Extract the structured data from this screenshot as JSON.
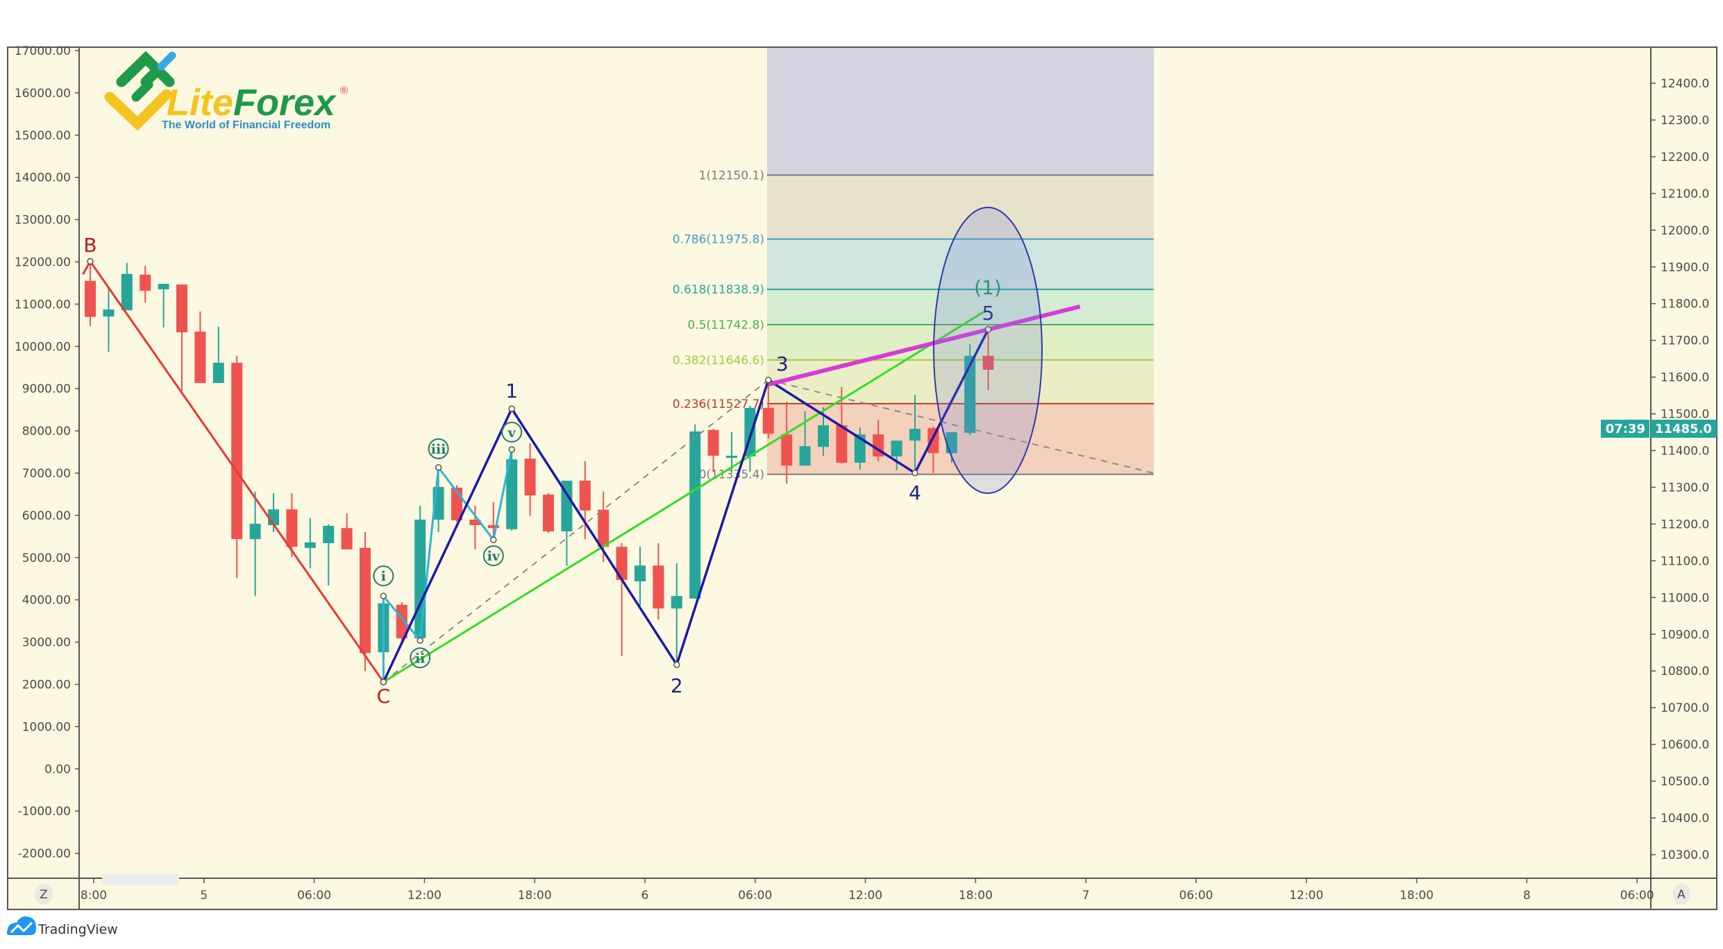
{
  "logo": {
    "brand_lite": "Lite",
    "brand_forex": "Forex",
    "registered": "®",
    "tagline": "The World of Financial Freedom"
  },
  "footer": {
    "brand": "TradingView"
  },
  "axis_buttons": {
    "left": "Z",
    "right": "A"
  },
  "price_tag": {
    "value": "11485.0",
    "countdown": "07:39",
    "color": "#26a69a"
  },
  "chart_data": {
    "type": "candlestick",
    "title": "",
    "colors": {
      "up": "#26a69a",
      "down": "#ef5350",
      "background": "#fdf8e1"
    },
    "left_axis": {
      "labels": [
        "17000.00",
        "16000.00",
        "15000.00",
        "14000.00",
        "13000.00",
        "12000.00",
        "11000.00",
        "10000.00",
        "9000.00",
        "8000.00",
        "7000.00",
        "6000.00",
        "5000.00",
        "4000.00",
        "3000.00",
        "2000.00",
        "1000.00",
        "0.00",
        "-1000.00",
        "-2000.00"
      ],
      "ylim": [
        -2000,
        17000
      ]
    },
    "right_axis": {
      "labels": [
        "12400.0",
        "12300.0",
        "12200.0",
        "12100.0",
        "12000.0",
        "11900.0",
        "11800.0",
        "11700.0",
        "11600.0",
        "11500.0",
        "11400.0",
        "11300.0",
        "11200.0",
        "11100.0",
        "11000.0",
        "10900.0",
        "10800.0",
        "10700.0",
        "10600.0",
        "10500.0",
        "10400.0",
        "10300.0"
      ],
      "ylim": [
        10300,
        12400
      ]
    },
    "time_axis": {
      "labels": [
        "8:00",
        "5",
        "06:00",
        "12:00",
        "18:00",
        "6",
        "06:00",
        "12:00",
        "18:00",
        "7",
        "06:00",
        "12:00",
        "18:00",
        "8",
        "06:00"
      ],
      "bars_per_label": 6
    },
    "candles": [
      [
        11862,
        11913,
        11739,
        11764
      ],
      [
        11765,
        11841,
        11669,
        11784
      ],
      [
        11782,
        11911,
        11782,
        11881
      ],
      [
        11879,
        11903,
        11803,
        11835
      ],
      [
        11839,
        11854,
        11735,
        11854
      ],
      [
        11852,
        11852,
        11563,
        11722
      ],
      [
        11724,
        11779,
        11584,
        11584
      ],
      [
        11584,
        11737,
        11584,
        11639
      ],
      [
        11639,
        11658,
        11053,
        11159
      ],
      [
        11159,
        11288,
        11004,
        11201
      ],
      [
        11197,
        11284,
        11178,
        11240
      ],
      [
        11240,
        11284,
        11110,
        11138
      ],
      [
        11135,
        11216,
        11080,
        11150
      ],
      [
        11148,
        11199,
        11033,
        11195
      ],
      [
        11189,
        11229,
        11131,
        11131
      ],
      [
        11135,
        11178,
        10800,
        10849
      ],
      [
        10851,
        11004,
        10770,
        10984
      ],
      [
        10980,
        10987,
        10874,
        10889
      ],
      [
        10889,
        11250,
        10876,
        11212
      ],
      [
        11212,
        11354,
        11178,
        11301
      ],
      [
        11299,
        11305,
        11206,
        11210
      ],
      [
        11212,
        11250,
        11131,
        11197
      ],
      [
        11197,
        11259,
        11157,
        11189
      ],
      [
        11186,
        11403,
        11182,
        11376
      ],
      [
        11378,
        11420,
        11222,
        11278
      ],
      [
        11280,
        11284,
        11176,
        11180
      ],
      [
        11180,
        11318,
        11086,
        11318
      ],
      [
        11318,
        11371,
        11159,
        11237
      ],
      [
        11239,
        11288,
        11097,
        11138
      ],
      [
        11138,
        11148,
        10840,
        11048
      ],
      [
        11044,
        11138,
        10978,
        11087
      ],
      [
        11087,
        11148,
        10940,
        10970
      ],
      [
        10970,
        11093,
        10812,
        11004
      ],
      [
        10997,
        11471,
        10997,
        11452
      ],
      [
        11456,
        11459,
        11342,
        11386
      ],
      [
        11380,
        11450,
        11342,
        11386
      ],
      [
        11384,
        11522,
        11342,
        11516
      ],
      [
        11516,
        11594,
        11433,
        11446
      ],
      [
        11444,
        11533,
        11310,
        11359
      ],
      [
        11359,
        11507,
        11359,
        11412
      ],
      [
        11410,
        11518,
        11386,
        11469
      ],
      [
        11469,
        11573,
        11365,
        11367
      ],
      [
        11367,
        11463,
        11348,
        11444
      ],
      [
        11444,
        11484,
        11371,
        11384
      ],
      [
        11384,
        11427,
        11346,
        11427
      ],
      [
        11427,
        11552,
        11337,
        11459
      ],
      [
        11461,
        11465,
        11339,
        11393
      ],
      [
        11393,
        11450,
        11367,
        11450
      ],
      [
        11448,
        11690,
        11442,
        11658
      ],
      [
        11658,
        11728,
        11565,
        11620
      ]
    ],
    "candle_format": [
      "open",
      "high",
      "low",
      "close"
    ],
    "fibonacci": {
      "levels": [
        {
          "label": "1(12150.1)",
          "price": 12150.1,
          "line": "#787b86",
          "fill": "#e6e2cc"
        },
        {
          "label": "0.786(11975.8)",
          "price": 11975.8,
          "line": "#3e9fc4",
          "fill": "#cfe5dd"
        },
        {
          "label": "0.618(11838.9)",
          "price": 11838.9,
          "line": "#22ab94",
          "fill": "#d3ecd2"
        },
        {
          "label": "0.5(11742.8)",
          "price": 11742.8,
          "line": "#4caf50",
          "fill": "#e0efc6"
        },
        {
          "label": "0.382(11646.6)",
          "price": 11646.6,
          "line": "#9ccc40",
          "fill": "#ebeec4"
        },
        {
          "label": "0.236(11527.7)",
          "price": 11527.7,
          "line": "#c0392b",
          "fill": "#f4d1bb"
        },
        {
          "label": "0(11335.4)",
          "price": 11335.4,
          "line": "#787b86",
          "fill": null
        }
      ],
      "above_fill": "#d4d3e0"
    },
    "waves": {
      "abc": [
        {
          "label": "B",
          "i": 0,
          "price": 11915
        },
        {
          "label": "C",
          "i": 16,
          "price": 10770
        }
      ],
      "abc_start": {
        "i": -0.4,
        "price": 11880
      },
      "impulse": [
        {
          "label": "",
          "i": 16,
          "price": 10770
        },
        {
          "label": "1",
          "i": 23,
          "price": 11514
        },
        {
          "label": "2",
          "i": 32,
          "price": 10817
        },
        {
          "label": "3",
          "i": 37,
          "price": 11592
        },
        {
          "label": "4",
          "i": 45,
          "price": 11339
        },
        {
          "label": "5",
          "i": 49,
          "price": 11730
        }
      ],
      "subwaves": [
        {
          "label": "",
          "i": 16,
          "price": 10770
        },
        {
          "label": "i",
          "i": 16,
          "price": 11004
        },
        {
          "label": "ii",
          "i": 18,
          "price": 10883
        },
        {
          "label": "iii",
          "i": 19,
          "price": 11354
        },
        {
          "label": "iv",
          "i": 22,
          "price": 11157
        },
        {
          "label": "v",
          "i": 23,
          "price": 11403
        }
      ],
      "degree_label": "(1)",
      "channel_line": [
        {
          "i": 16,
          "price": 10770
        },
        {
          "i": 48.8,
          "price": 11779
        }
      ],
      "trend_line": [
        {
          "i": 37,
          "price": 11580
        },
        {
          "i": 54,
          "price": 11792
        }
      ],
      "dashed_lines": [
        [
          {
            "i": 16,
            "price": 10770
          },
          {
            "i": 37,
            "price": 11592
          }
        ],
        [
          {
            "i": 37,
            "price": 11592
          },
          {
            "i": 58,
            "price": 11339
          }
        ]
      ]
    }
  }
}
